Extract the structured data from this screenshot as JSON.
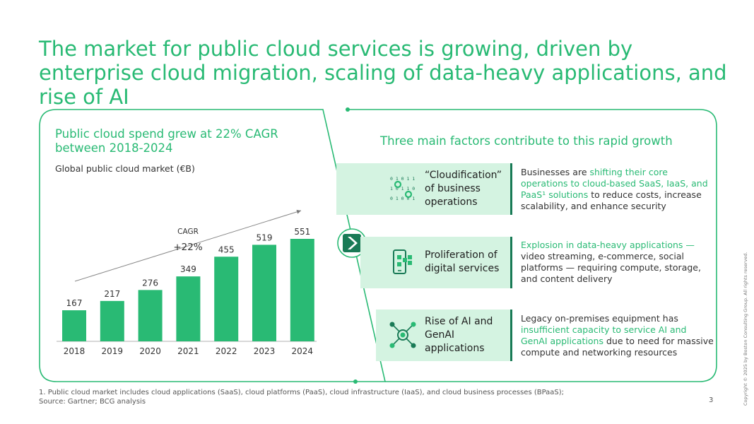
{
  "title": "The market for public cloud services is growing, driven by enterprise cloud migration, scaling of data-heavy applications, and rise of AI",
  "left": {
    "heading": "Public cloud spend grew at 22% CAGR between 2018-2024",
    "subheading": "Global public cloud market (€B)"
  },
  "chart_data": {
    "type": "bar",
    "title": "Global public cloud market (€B)",
    "categories": [
      "2018",
      "2019",
      "2020",
      "2021",
      "2022",
      "2023",
      "2024"
    ],
    "values": [
      167,
      217,
      276,
      349,
      455,
      519,
      551
    ],
    "ylim": [
      0,
      600
    ],
    "xlabel": "",
    "ylabel": "",
    "annotations": {
      "cagr_label": "CAGR",
      "cagr_value": "+22%"
    },
    "colors": {
      "bar": "#29ba74"
    }
  },
  "right": {
    "heading": "Three main factors contribute to this rapid growth",
    "factors": [
      {
        "title": "“Cloudification” of business operations",
        "icon": "binary-gear-icon",
        "desc_pre": "Businesses are ",
        "desc_hl": "shifting their core operations to cloud-based SaaS, IaaS, and PaaS¹ solutions",
        "desc_post": " to reduce costs, increase scalability, and enhance security"
      },
      {
        "title": "Proliferation of digital services",
        "icon": "mobile-apps-icon",
        "desc_pre": "",
        "desc_hl": "Explosion in data-heavy applications —",
        "desc_post": " video streaming, e-commerce, social platforms — requiring compute, storage, and content delivery"
      },
      {
        "title": "Rise of AI and GenAI applications",
        "icon": "ai-network-icon",
        "desc_pre": "Legacy on-premises equipment has ",
        "desc_hl": "insufficient capacity to service AI and GenAI applications",
        "desc_post": " due to need for massive compute and networking resources"
      }
    ]
  },
  "footnote": "1. Public cloud market includes cloud applications (SaaS), cloud platforms (PaaS), cloud infrastructure (IaaS), and cloud business processes (BPaaS);",
  "source": "Source: Gartner; BCG analysis",
  "page_number": "3",
  "copyright": "Copyright © 2025 by Boston Consulting Group. All rights reserved.",
  "colors": {
    "accent": "#29ba74",
    "dark_green": "#197a56",
    "band": "#d4f3e1"
  }
}
